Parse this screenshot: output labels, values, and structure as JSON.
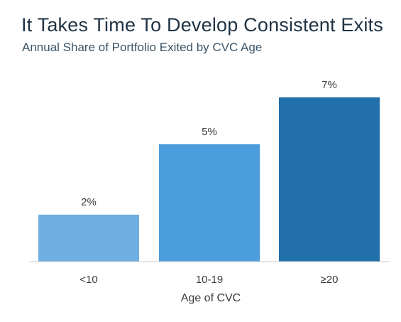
{
  "title": "It Takes Time To Develop Consistent Exits",
  "subtitle": "Annual Share of Portfolio Exited by CVC Age",
  "chart_data": {
    "type": "bar",
    "title": "It Takes Time To Develop Consistent Exits",
    "subtitle": "Annual Share of Portfolio Exited by CVC Age",
    "categories": [
      "<10",
      "10-19",
      "≥20"
    ],
    "values": [
      2,
      5,
      7
    ],
    "value_labels": [
      "2%",
      "5%",
      "7%"
    ],
    "colors": [
      "#6faee0",
      "#4c9ddc",
      "#2170ac"
    ],
    "xlabel": "Age of CVC",
    "ylabel": "",
    "ylim": [
      0,
      7
    ],
    "grid": false,
    "legend": "none"
  }
}
